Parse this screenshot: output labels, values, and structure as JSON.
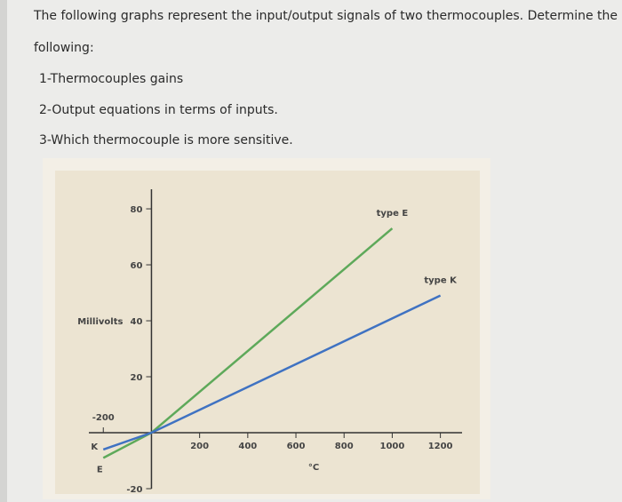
{
  "question": {
    "lines": [
      "The following graphs represent the input/output signals of two thermocouples. Determine the",
      "following:",
      "1-Thermocouples gains",
      "2-Output equations in terms of inputs.",
      "3-Which thermocouple is more sensitive."
    ]
  },
  "chart_data": {
    "type": "line",
    "y_label": "Millivolts",
    "x_label": "°C",
    "series": [
      {
        "name": "type E",
        "short_name": "E",
        "color": "#5ea95a",
        "x": [
          -200,
          0,
          1000
        ],
        "values": [
          -9,
          0,
          73
        ]
      },
      {
        "name": "type K",
        "short_name": "K",
        "color": "#3f72c2",
        "x": [
          -200,
          0,
          1200
        ],
        "values": [
          -6,
          0,
          49
        ]
      }
    ],
    "xlim": [
      -260,
      1290
    ],
    "xticks": [
      -200,
      200,
      400,
      600,
      800,
      1000,
      1200
    ],
    "ylim": [
      -20,
      87
    ],
    "yticks": [
      -20,
      20,
      40,
      60,
      80
    ]
  }
}
